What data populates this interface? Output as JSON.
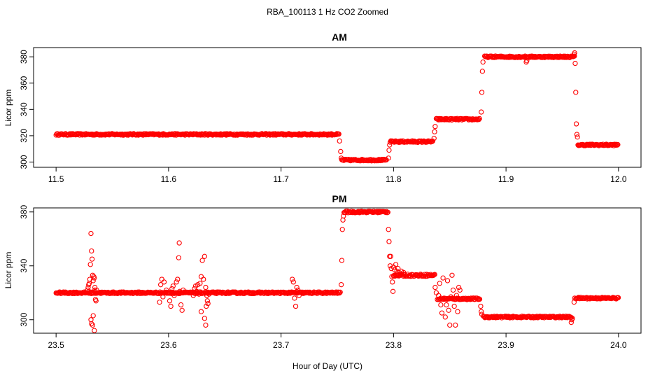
{
  "figure": {
    "title": "RBA_100113  1 Hz CO2 Zoomed",
    "xlabel": "Hour of Day (UTC)"
  },
  "colors": {
    "points": "#ff0000",
    "axes": "#000000",
    "background": "#ffffff"
  },
  "chart_data": [
    {
      "type": "scatter",
      "title": "AM",
      "ylabel": "Licor ppm",
      "xlim": [
        11.48,
        12.02
      ],
      "ylim": [
        296,
        387
      ],
      "x_ticks": [
        11.5,
        11.6,
        11.7,
        11.8,
        11.9,
        12.0
      ],
      "x_tick_labels": [
        "11.5",
        "11.6",
        "11.7",
        "11.8",
        "11.9",
        "12.0"
      ],
      "y_ticks": [
        300,
        320,
        340,
        360,
        380
      ],
      "y_tick_labels": [
        "300",
        "320",
        "340",
        "360",
        "380"
      ],
      "grid": false,
      "marker": "open-circle",
      "segments": [
        {
          "x": [
            11.5,
            11.752
          ],
          "y": 321,
          "noise": 0.6
        },
        {
          "x": [
            11.754,
            11.794
          ],
          "y": 301.5,
          "noise": 0.6
        },
        {
          "x": [
            11.797,
            11.835
          ],
          "y": 315.5,
          "noise": 0.6
        },
        {
          "x": [
            11.838,
            11.877
          ],
          "y": 332.5,
          "noise": 0.6
        },
        {
          "x": [
            11.881,
            11.961
          ],
          "y": 380,
          "noise": 0.6
        },
        {
          "x": [
            11.964,
            12.0
          ],
          "y": 313,
          "noise": 0.6
        }
      ],
      "points": [
        [
          11.752,
          316
        ],
        [
          11.753,
          308
        ],
        [
          11.7535,
          303
        ],
        [
          11.7955,
          303
        ],
        [
          11.796,
          309
        ],
        [
          11.7965,
          313
        ],
        [
          11.836,
          318
        ],
        [
          11.8365,
          323
        ],
        [
          11.837,
          327
        ],
        [
          11.878,
          338
        ],
        [
          11.8785,
          353
        ],
        [
          11.879,
          369
        ],
        [
          11.8795,
          376
        ],
        [
          11.918,
          376
        ],
        [
          11.9185,
          377
        ],
        [
          11.9605,
          382
        ],
        [
          11.961,
          383
        ],
        [
          11.9615,
          375
        ],
        [
          11.962,
          353
        ],
        [
          11.9625,
          329
        ],
        [
          11.963,
          321
        ],
        [
          11.9635,
          319
        ]
      ]
    },
    {
      "type": "scatter",
      "title": "PM",
      "ylabel": "Licor ppm",
      "xlim": [
        23.48,
        24.02
      ],
      "ylim": [
        290,
        383
      ],
      "x_ticks": [
        23.5,
        23.6,
        23.7,
        23.8,
        23.9,
        24.0
      ],
      "x_tick_labels": [
        "23.5",
        "23.6",
        "23.7",
        "23.8",
        "23.9",
        "24.0"
      ],
      "y_ticks": [
        300,
        340,
        380
      ],
      "y_tick_labels": [
        "300",
        "340",
        "380"
      ],
      "grid": false,
      "marker": "open-circle",
      "segments": [
        {
          "x": [
            23.5,
            23.753
          ],
          "y": 320,
          "noise": 0.6
        },
        {
          "x": [
            23.756,
            23.795
          ],
          "y": 380,
          "noise": 0.6
        },
        {
          "x": [
            23.8,
            23.837
          ],
          "y": 333,
          "noise": 0.8
        },
        {
          "x": [
            23.84,
            23.877
          ],
          "y": 315.5,
          "noise": 0.6
        },
        {
          "x": [
            23.88,
            23.958
          ],
          "y": 302,
          "noise": 0.6
        },
        {
          "x": [
            23.962,
            24.0
          ],
          "y": 316,
          "noise": 0.6
        }
      ],
      "points": [
        [
          23.529,
          326
        ],
        [
          23.5295,
          327
        ],
        [
          23.53,
          330
        ],
        [
          23.5305,
          341
        ],
        [
          23.531,
          364
        ],
        [
          23.5315,
          351
        ],
        [
          23.532,
          345
        ],
        [
          23.5325,
          333
        ],
        [
          23.533,
          329
        ],
        [
          23.5335,
          332
        ],
        [
          23.534,
          331
        ],
        [
          23.5345,
          324
        ],
        [
          23.535,
          315
        ],
        [
          23.5355,
          314
        ],
        [
          23.5345,
          322
        ],
        [
          23.531,
          300
        ],
        [
          23.5315,
          297
        ],
        [
          23.533,
          303
        ],
        [
          23.5325,
          296
        ],
        [
          23.534,
          292
        ],
        [
          23.528,
          322
        ],
        [
          23.5285,
          324
        ],
        [
          23.536,
          322
        ],
        [
          23.592,
          313
        ],
        [
          23.593,
          326
        ],
        [
          23.594,
          330
        ],
        [
          23.595,
          317
        ],
        [
          23.596,
          328
        ],
        [
          23.598,
          322
        ],
        [
          23.6,
          320
        ],
        [
          23.601,
          314
        ],
        [
          23.602,
          310
        ],
        [
          23.603,
          323
        ],
        [
          23.604,
          325
        ],
        [
          23.605,
          318
        ],
        [
          23.606,
          320
        ],
        [
          23.607,
          328
        ],
        [
          23.608,
          330
        ],
        [
          23.609,
          346
        ],
        [
          23.6095,
          357
        ],
        [
          23.61,
          321
        ],
        [
          23.611,
          311
        ],
        [
          23.612,
          307
        ],
        [
          23.613,
          322
        ],
        [
          23.622,
          318
        ],
        [
          23.623,
          323
        ],
        [
          23.624,
          325
        ],
        [
          23.625,
          321
        ],
        [
          23.626,
          326
        ],
        [
          23.627,
          319
        ],
        [
          23.628,
          327
        ],
        [
          23.629,
          332
        ],
        [
          23.63,
          344
        ],
        [
          23.631,
          330
        ],
        [
          23.632,
          347
        ],
        [
          23.633,
          324
        ],
        [
          23.634,
          318
        ],
        [
          23.6345,
          314
        ],
        [
          23.635,
          312
        ],
        [
          23.6335,
          310
        ],
        [
          23.632,
          301
        ],
        [
          23.633,
          296
        ],
        [
          23.629,
          306
        ],
        [
          23.636,
          319
        ],
        [
          23.71,
          330
        ],
        [
          23.711,
          328
        ],
        [
          23.712,
          316
        ],
        [
          23.713,
          310
        ],
        [
          23.714,
          324
        ],
        [
          23.715,
          322
        ],
        [
          23.716,
          318
        ],
        [
          23.7535,
          326
        ],
        [
          23.754,
          344
        ],
        [
          23.7545,
          367
        ],
        [
          23.755,
          374
        ],
        [
          23.7555,
          377
        ],
        [
          23.7955,
          367
        ],
        [
          23.796,
          358
        ],
        [
          23.7965,
          347
        ],
        [
          23.797,
          340
        ],
        [
          23.7975,
          347
        ],
        [
          23.798,
          338
        ],
        [
          23.7985,
          332
        ],
        [
          23.799,
          328
        ],
        [
          23.7995,
          321
        ],
        [
          23.8,
          339
        ],
        [
          23.801,
          337
        ],
        [
          23.802,
          341
        ],
        [
          23.803,
          336
        ],
        [
          23.804,
          338
        ],
        [
          23.805,
          335
        ],
        [
          23.807,
          336
        ],
        [
          23.809,
          335
        ],
        [
          23.837,
          324
        ],
        [
          23.838,
          320
        ],
        [
          23.839,
          315
        ],
        [
          23.84,
          318
        ],
        [
          23.841,
          327
        ],
        [
          23.842,
          311
        ],
        [
          23.843,
          305
        ],
        [
          23.844,
          331
        ],
        [
          23.845,
          316
        ],
        [
          23.846,
          302
        ],
        [
          23.847,
          311
        ],
        [
          23.848,
          329
        ],
        [
          23.849,
          307
        ],
        [
          23.85,
          296
        ],
        [
          23.851,
          317
        ],
        [
          23.852,
          333
        ],
        [
          23.853,
          322
        ],
        [
          23.854,
          310
        ],
        [
          23.855,
          296
        ],
        [
          23.856,
          318
        ],
        [
          23.857,
          306
        ],
        [
          23.858,
          324
        ],
        [
          23.859,
          322
        ],
        [
          23.8775,
          310
        ],
        [
          23.878,
          306
        ],
        [
          23.8785,
          304
        ],
        [
          23.958,
          298
        ],
        [
          23.9585,
          300
        ],
        [
          23.959,
          301
        ],
        [
          23.9605,
          313
        ],
        [
          23.961,
          316
        ]
      ]
    }
  ]
}
